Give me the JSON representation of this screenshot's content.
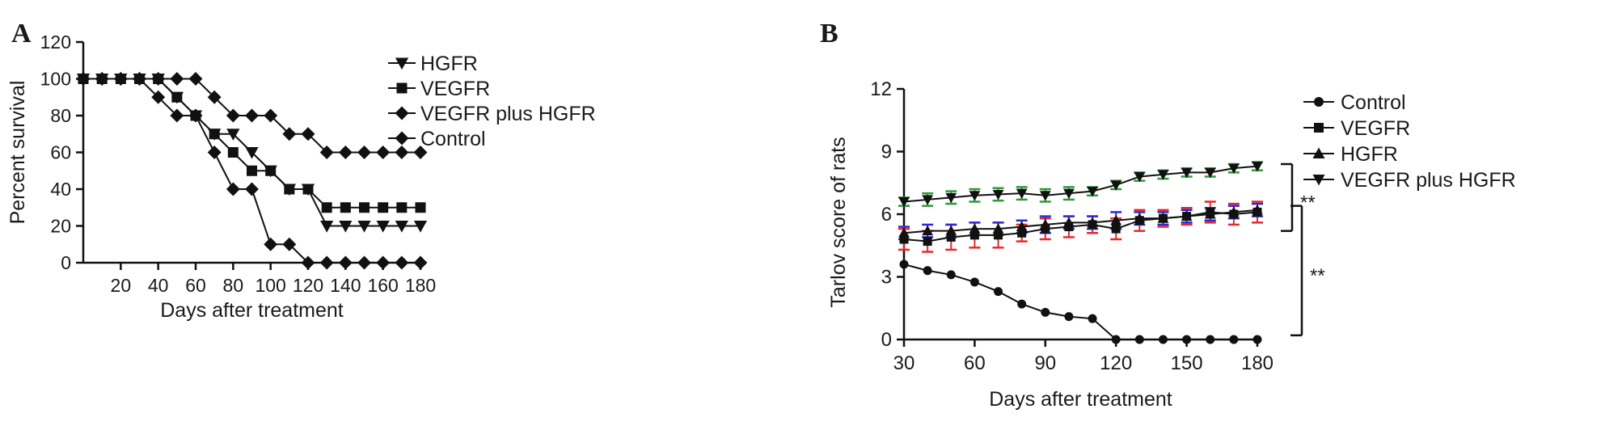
{
  "panels": {
    "a_label": "A",
    "b_label": "B"
  },
  "chart_data": [
    {
      "type": "line",
      "panel": "A",
      "xlabel": "Days after treatment",
      "ylabel": "Percent survival",
      "xlim": [
        0,
        180
      ],
      "ylim": [
        0,
        120
      ],
      "xticks": [
        20,
        40,
        60,
        80,
        100,
        120,
        140,
        160,
        180
      ],
      "yticks": [
        0,
        20,
        40,
        60,
        80,
        100,
        120
      ],
      "legend_position": "top-right",
      "step": true,
      "series": [
        {
          "name": "HGFR",
          "marker": "triangle-down",
          "color": "#111111",
          "x": [
            0,
            10,
            20,
            30,
            40,
            50,
            60,
            70,
            80,
            90,
            100,
            110,
            120,
            130,
            140,
            150,
            160,
            170,
            180
          ],
          "y": [
            100,
            100,
            100,
            100,
            100,
            90,
            80,
            70,
            70,
            60,
            50,
            40,
            40,
            20,
            20,
            20,
            20,
            20,
            20
          ]
        },
        {
          "name": "VEGFR",
          "marker": "square",
          "color": "#111111",
          "x": [
            0,
            10,
            20,
            30,
            40,
            50,
            60,
            70,
            80,
            90,
            100,
            110,
            120,
            130,
            140,
            150,
            160,
            170,
            180
          ],
          "y": [
            100,
            100,
            100,
            100,
            100,
            90,
            80,
            70,
            60,
            50,
            50,
            40,
            40,
            30,
            30,
            30,
            30,
            30,
            30
          ]
        },
        {
          "name": "VEGFR plus HGFR",
          "marker": "diamond",
          "color": "#111111",
          "x": [
            0,
            10,
            20,
            30,
            40,
            50,
            60,
            70,
            80,
            90,
            100,
            110,
            120,
            130,
            140,
            150,
            160,
            170,
            180
          ],
          "y": [
            100,
            100,
            100,
            100,
            100,
            100,
            100,
            90,
            80,
            80,
            80,
            70,
            70,
            60,
            60,
            60,
            60,
            60,
            60
          ]
        },
        {
          "name": "Control",
          "marker": "diamond",
          "color": "#111111",
          "x": [
            0,
            10,
            20,
            30,
            40,
            50,
            60,
            70,
            80,
            90,
            100,
            110,
            120,
            130,
            140,
            150,
            160,
            170,
            180
          ],
          "y": [
            100,
            100,
            100,
            100,
            90,
            80,
            80,
            60,
            40,
            40,
            10,
            10,
            0,
            0,
            0,
            0,
            0,
            0,
            0
          ]
        }
      ]
    },
    {
      "type": "line",
      "panel": "B",
      "xlabel": "Days after treatment",
      "ylabel": "Tarlov score of rats",
      "xlim": [
        30,
        180
      ],
      "ylim": [
        0,
        12
      ],
      "xticks": [
        30,
        60,
        90,
        120,
        150,
        180
      ],
      "yticks": [
        0,
        3,
        6,
        9,
        12
      ],
      "legend_position": "right",
      "significance": [
        {
          "label": "**",
          "from": 5.2,
          "to": 8.4
        },
        {
          "label": "**",
          "from": 0.2,
          "to": 6.4
        }
      ],
      "series": [
        {
          "name": "Control",
          "marker": "circle",
          "color": "#111111",
          "x": [
            30,
            40,
            50,
            60,
            70,
            80,
            90,
            100,
            110,
            120,
            130,
            140,
            150,
            160,
            170,
            180
          ],
          "y": [
            3.6,
            3.3,
            3.1,
            2.75,
            2.3,
            1.7,
            1.3,
            1.1,
            1.0,
            0,
            0,
            0,
            0,
            0,
            0,
            0
          ],
          "err": [
            0,
            0,
            0,
            0,
            0,
            0,
            0,
            0,
            0,
            0,
            0,
            0,
            0,
            0,
            0,
            0
          ],
          "err_color": "#111111"
        },
        {
          "name": "VEGFR",
          "marker": "square",
          "color": "#111111",
          "x": [
            30,
            40,
            50,
            60,
            70,
            80,
            90,
            100,
            110,
            120,
            130,
            140,
            150,
            160,
            170,
            180
          ],
          "y": [
            4.8,
            4.7,
            4.9,
            5.0,
            5.0,
            5.1,
            5.3,
            5.4,
            5.5,
            5.3,
            5.7,
            5.8,
            5.9,
            6.1,
            6.0,
            6.1
          ],
          "err": [
            0.5,
            0.5,
            0.6,
            0.6,
            0.6,
            0.4,
            0.5,
            0.5,
            0.4,
            0.5,
            0.5,
            0.4,
            0.4,
            0.5,
            0.5,
            0.5
          ],
          "err_color": "#e8272a"
        },
        {
          "name": "HGFR",
          "marker": "triangle-up",
          "color": "#111111",
          "x": [
            30,
            40,
            50,
            60,
            70,
            80,
            90,
            100,
            110,
            120,
            130,
            140,
            150,
            160,
            170,
            180
          ],
          "y": [
            5.1,
            5.2,
            5.2,
            5.3,
            5.3,
            5.4,
            5.5,
            5.6,
            5.6,
            5.7,
            5.8,
            5.8,
            5.9,
            6.0,
            6.1,
            6.2
          ],
          "err": [
            0.3,
            0.3,
            0.3,
            0.3,
            0.3,
            0.3,
            0.4,
            0.3,
            0.3,
            0.4,
            0.3,
            0.3,
            0.3,
            0.3,
            0.3,
            0.3
          ],
          "err_color": "#2b2bd6"
        },
        {
          "name": "VEGFR plus HGFR",
          "marker": "triangle-down",
          "color": "#111111",
          "x": [
            30,
            40,
            50,
            60,
            70,
            80,
            90,
            100,
            110,
            120,
            130,
            140,
            150,
            160,
            170,
            180
          ],
          "y": [
            6.6,
            6.7,
            6.8,
            6.9,
            6.95,
            7.0,
            6.9,
            7.0,
            7.1,
            7.4,
            7.8,
            7.9,
            8.0,
            8.0,
            8.2,
            8.3
          ],
          "err": [
            0.2,
            0.3,
            0.3,
            0.3,
            0.3,
            0.3,
            0.3,
            0.3,
            0.2,
            0.2,
            0.2,
            0.2,
            0.2,
            0.2,
            0.2,
            0.2
          ],
          "err_color": "#2e9a3a"
        }
      ]
    }
  ]
}
